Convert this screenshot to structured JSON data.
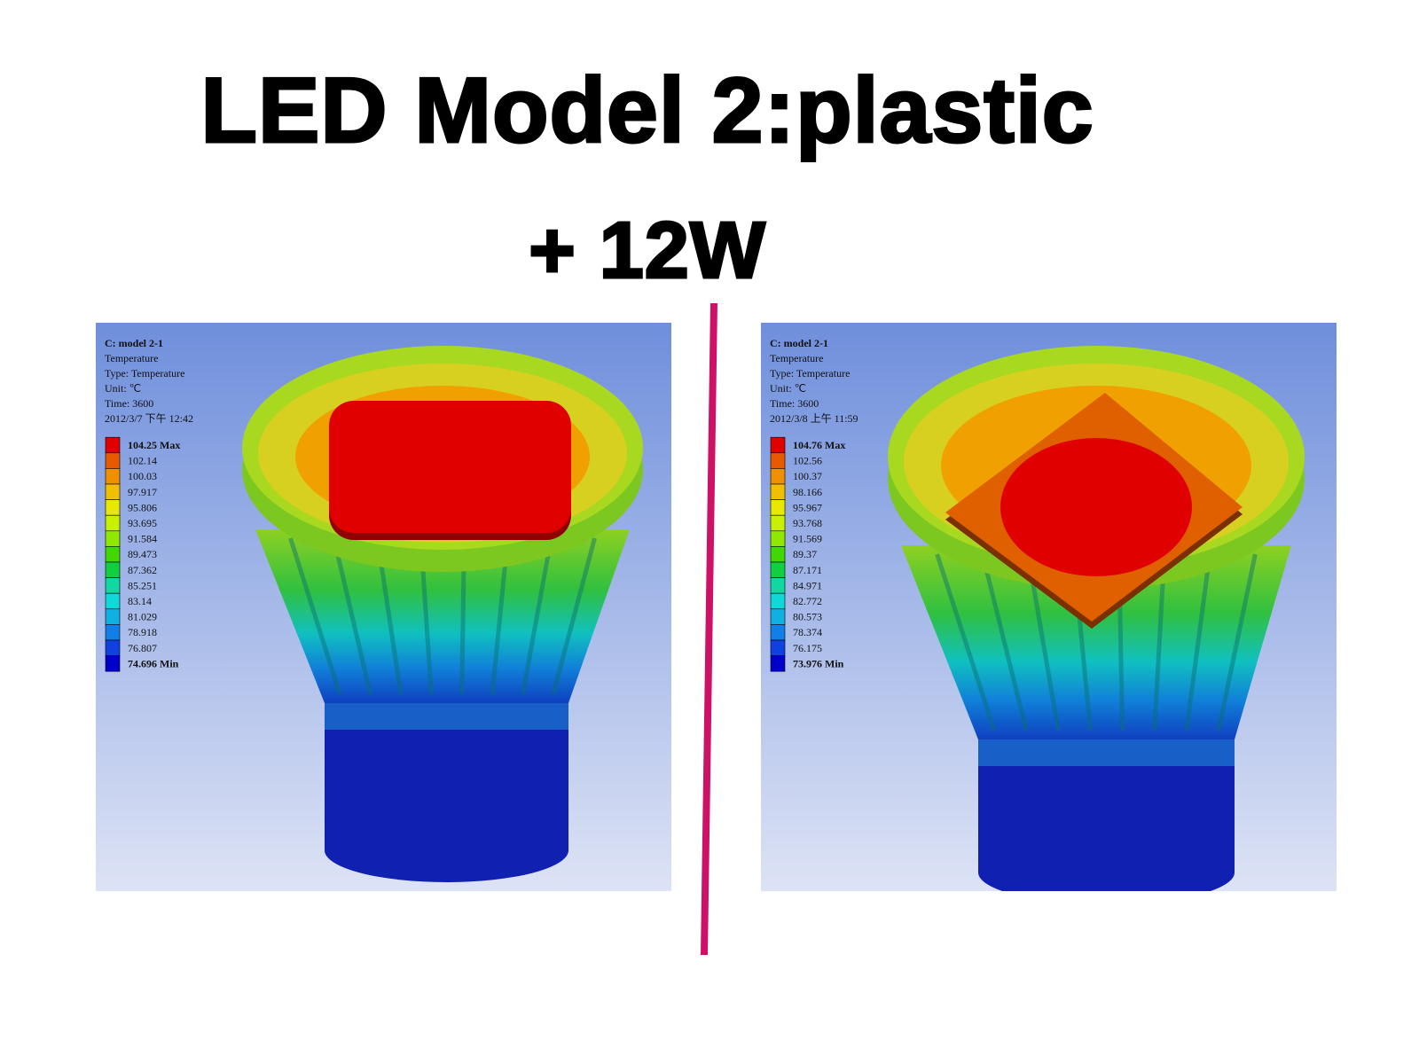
{
  "title": {
    "line1": "LED Model 2:plastic",
    "line2": "+ 12W"
  },
  "panels": [
    {
      "header": [
        "C: model 2-1",
        "Temperature",
        "Type: Temperature",
        "Unit: ℃",
        "Time: 3600",
        "2012/3/7 下午 12:42"
      ],
      "legend": [
        "104.25 Max",
        "102.14",
        "100.03",
        "97.917",
        "95.806",
        "93.695",
        "91.584",
        "89.473",
        "87.362",
        "85.251",
        "83.14",
        "81.029",
        "78.918",
        "76.807",
        "74.696 Min"
      ]
    },
    {
      "header": [
        "C: model 2-1",
        "Temperature",
        "Type: Temperature",
        "Unit: ℃",
        "Time: 3600",
        "2012/3/8 上午 11:59"
      ],
      "legend": [
        "104.76 Max",
        "102.56",
        "100.37",
        "98.166",
        "95.967",
        "93.768",
        "91.569",
        "89.37",
        "87.171",
        "84.971",
        "82.772",
        "80.573",
        "78.374",
        "76.175",
        "73.976 Min"
      ]
    }
  ]
}
